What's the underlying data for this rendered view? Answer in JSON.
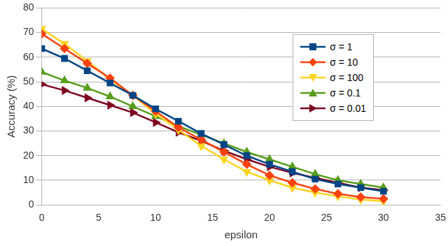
{
  "chart_data": {
    "type": "line",
    "x_label": "epsilon",
    "y_label": "Accuracy (%)",
    "x": [
      0,
      2,
      4,
      6,
      8,
      10,
      12,
      14,
      16,
      18,
      20,
      22,
      24,
      26,
      28,
      30
    ],
    "series": [
      {
        "name": "σ = 1",
        "color": "#004586",
        "marker": "square",
        "values": [
          63.5,
          59.5,
          54.5,
          49.5,
          44.5,
          39,
          34,
          29,
          24.5,
          20,
          16.5,
          13.5,
          10.5,
          8.5,
          7,
          5.5
        ]
      },
      {
        "name": "σ = 10",
        "color": "#ff420e",
        "marker": "diamond",
        "values": [
          69.5,
          63.5,
          57.5,
          51.5,
          44.5,
          38,
          31.5,
          26.5,
          21.5,
          16.5,
          12,
          9,
          6.5,
          4.5,
          3.2,
          2.5
        ]
      },
      {
        "name": "σ = 100",
        "color": "#ffd320",
        "marker": "triangle-down",
        "values": [
          71.5,
          65.5,
          58.5,
          51,
          44.5,
          37,
          30.5,
          24,
          18.5,
          13.5,
          10,
          7,
          5,
          3.5,
          2.2,
          1.5
        ]
      },
      {
        "name": "σ = 0.1",
        "color": "#579d1c",
        "marker": "triangle",
        "values": [
          54,
          50.5,
          47.5,
          44,
          40,
          36,
          32,
          28.5,
          25,
          21.5,
          18.5,
          15.5,
          12.5,
          10,
          8.5,
          7
        ]
      },
      {
        "name": "σ = 0.01",
        "color": "#7e0021",
        "marker": "triangle-right",
        "values": [
          49,
          46.5,
          43.5,
          40.5,
          37.5,
          33.5,
          29.5,
          26,
          22,
          18.5,
          15.5,
          13,
          11,
          9,
          7,
          6
        ]
      }
    ],
    "xlim": [
      0,
      35
    ],
    "xticks": [
      0,
      5,
      10,
      15,
      20,
      25,
      30,
      35
    ],
    "ylim": [
      0,
      80
    ],
    "yticks": [
      0,
      10,
      20,
      30,
      40,
      50,
      60,
      70,
      80
    ],
    "grid": true,
    "legend": "upper right"
  }
}
